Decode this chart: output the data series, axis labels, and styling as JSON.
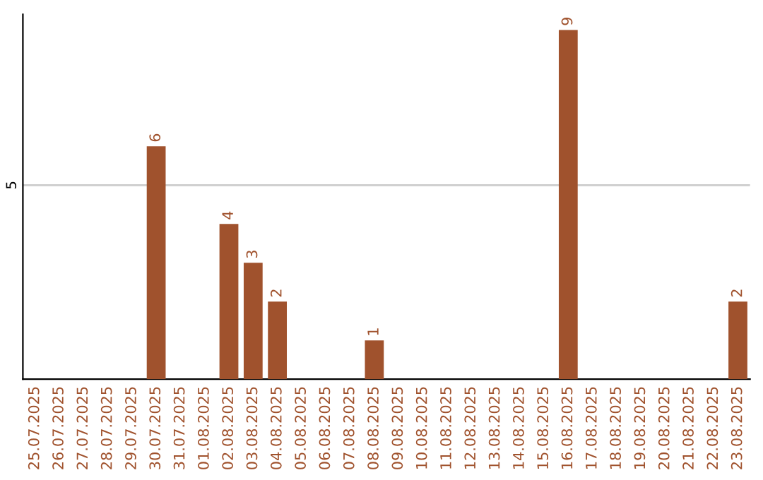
{
  "chart_data": {
    "type": "bar",
    "categories": [
      "25.07.2025",
      "26.07.2025",
      "27.07.2025",
      "28.07.2025",
      "29.07.2025",
      "30.07.2025",
      "31.07.2025",
      "01.08.2025",
      "02.08.2025",
      "03.08.2025",
      "04.08.2025",
      "05.08.2025",
      "06.08.2025",
      "07.08.2025",
      "08.08.2025",
      "09.08.2025",
      "10.08.2025",
      "11.08.2025",
      "12.08.2025",
      "13.08.2025",
      "14.08.2025",
      "15.08.2025",
      "16.08.2025",
      "17.08.2025",
      "18.08.2025",
      "19.08.2025",
      "20.08.2025",
      "21.08.2025",
      "22.08.2025",
      "23.08.2025"
    ],
    "values": [
      0,
      0,
      0,
      0,
      0,
      6,
      0,
      0,
      4,
      3,
      2,
      0,
      0,
      0,
      1,
      0,
      0,
      0,
      0,
      0,
      0,
      0,
      9,
      0,
      0,
      0,
      0,
      0,
      0,
      2
    ],
    "value_labels": [
      null,
      null,
      null,
      null,
      null,
      "6",
      null,
      null,
      "4",
      "3",
      "2",
      null,
      null,
      null,
      "1",
      null,
      null,
      null,
      null,
      null,
      null,
      null,
      "9",
      null,
      null,
      null,
      null,
      null,
      null,
      "2"
    ],
    "color": "#a0522d",
    "ylim": [
      0,
      9.4
    ],
    "yticks": [
      5
    ],
    "grid": "y"
  }
}
